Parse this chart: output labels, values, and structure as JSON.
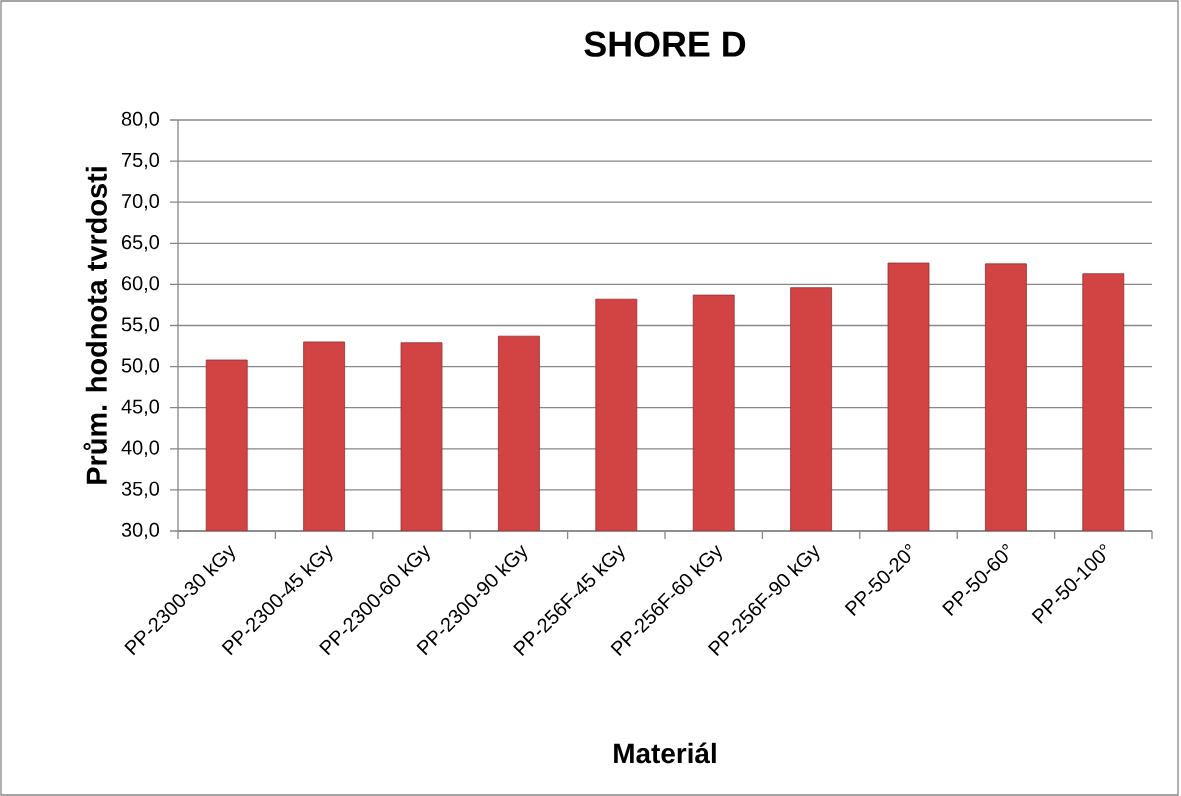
{
  "chart_data": {
    "type": "bar",
    "title": "SHORE D",
    "xlabel": "Materiál",
    "ylabel": "Prům. hodnota tvrdosti",
    "categories": [
      "PP-2300-30 kGy",
      "PP-2300-45 kGy",
      "PP-2300-60 kGy",
      "PP-2300-90 kGy",
      "PP-256F-45 kGy",
      "PP-256F-60 kGy",
      "PP-256F-90 kGy",
      "PP-50-20°",
      "PP-50-60°",
      "PP-50-100°"
    ],
    "values": [
      50.8,
      53.0,
      52.9,
      53.7,
      58.2,
      58.7,
      59.6,
      62.6,
      62.5,
      61.3
    ],
    "color": "#d24444",
    "ylim": [
      30,
      80
    ],
    "yticks": [
      {
        "value": 30,
        "label": "30,0"
      },
      {
        "value": 35,
        "label": "35,0"
      },
      {
        "value": 40,
        "label": "40,0"
      },
      {
        "value": 45,
        "label": "45,0"
      },
      {
        "value": 50,
        "label": "50,0"
      },
      {
        "value": 55,
        "label": "55,0"
      },
      {
        "value": 60,
        "label": "60,0"
      },
      {
        "value": 65,
        "label": "65,0"
      },
      {
        "value": 70,
        "label": "70,0"
      },
      {
        "value": 75,
        "label": "75,0"
      },
      {
        "value": 80,
        "label": "80,0"
      }
    ],
    "grid": "y"
  }
}
